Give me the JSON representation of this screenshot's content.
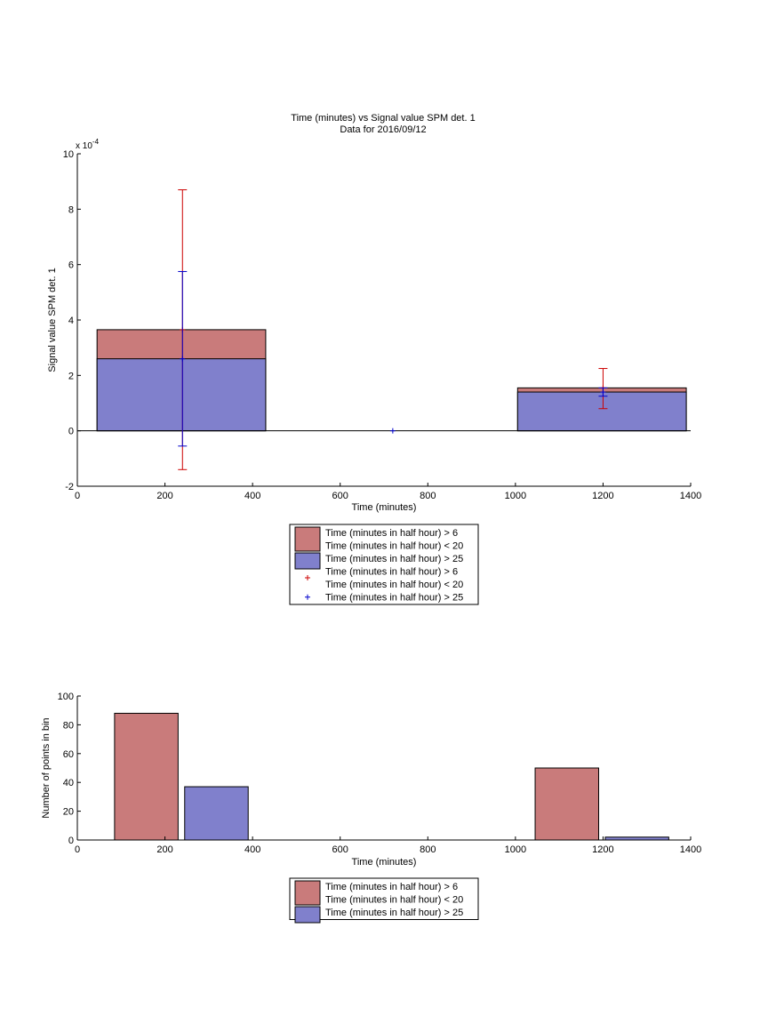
{
  "chart_data": [
    {
      "type": "bar",
      "title": "Time (minutes) vs Signal value SPM det. 1",
      "subtitle": "Data for 2016/09/12",
      "xlabel": "Time (minutes)",
      "ylabel": "Signal value SPM det. 1",
      "exponent_label": "x 10",
      "exponent_power": "-4",
      "xlim": [
        0,
        1400
      ],
      "ylim": [
        -2,
        10
      ],
      "xticks": [
        0,
        200,
        400,
        600,
        800,
        1000,
        1200,
        1400
      ],
      "yticks": [
        -2,
        0,
        2,
        4,
        6,
        8,
        10
      ],
      "grid": false,
      "legend_position": "below",
      "series": [
        {
          "name": "Time (minutes in half hour) > 6\nTime (minutes in half hour) < 20",
          "kind": "bar",
          "color": "#c97b7b",
          "bars": [
            {
              "x_start": 45,
              "x_end": 430,
              "value": 3.65
            },
            {
              "x_start": 1005,
              "x_end": 1390,
              "value": 1.55
            }
          ]
        },
        {
          "name": "Time (minutes in half hour) > 25",
          "kind": "bar",
          "color": "#8080cc",
          "bars": [
            {
              "x_start": 45,
              "x_end": 430,
              "value": 2.6
            },
            {
              "x_start": 1005,
              "x_end": 1390,
              "value": 1.4
            }
          ]
        },
        {
          "name": "Time (minutes in half hour) > 6\nTime (minutes in half hour) < 20",
          "kind": "errorbar",
          "color": "#cc0000",
          "marker": "+",
          "points": [
            {
              "x": 240,
              "y": 3.65,
              "low": -1.4,
              "high": 8.7
            },
            {
              "x": 1200,
              "y": 1.55,
              "low": 0.8,
              "high": 2.25
            }
          ]
        },
        {
          "name": "Time (minutes in half hour) > 25",
          "kind": "errorbar",
          "color": "#0000cc",
          "marker": "+",
          "points": [
            {
              "x": 240,
              "y": 2.6,
              "low": -0.55,
              "high": 5.75
            },
            {
              "x": 720,
              "y": 0,
              "low": 0,
              "high": 0
            },
            {
              "x": 1200,
              "y": 1.4,
              "low": 1.25,
              "high": 1.55
            }
          ]
        }
      ]
    },
    {
      "type": "bar",
      "xlabel": "Time (minutes)",
      "ylabel": "Number of points in bin",
      "xlim": [
        0,
        1400
      ],
      "ylim": [
        0,
        100
      ],
      "xticks": [
        0,
        200,
        400,
        600,
        800,
        1000,
        1200,
        1400
      ],
      "yticks": [
        0,
        20,
        40,
        60,
        80,
        100
      ],
      "grid": false,
      "legend_position": "below",
      "series": [
        {
          "name": "Time (minutes in half hour) > 6\nTime (minutes in half hour) < 20",
          "kind": "bar",
          "color": "#c97b7b",
          "bars": [
            {
              "x_start": 85,
              "x_end": 230,
              "value": 88
            },
            {
              "x_start": 1045,
              "x_end": 1190,
              "value": 50
            }
          ]
        },
        {
          "name": "Time (minutes in half hour) > 25",
          "kind": "bar",
          "color": "#8080cc",
          "bars": [
            {
              "x_start": 245,
              "x_end": 390,
              "value": 37
            },
            {
              "x_start": 1205,
              "x_end": 1350,
              "value": 2
            }
          ]
        }
      ]
    }
  ]
}
